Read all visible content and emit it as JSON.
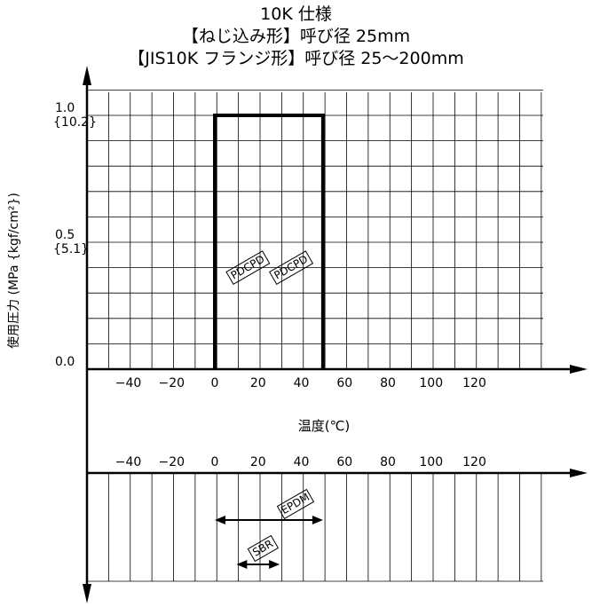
{
  "chart_data": {
    "type": "bar",
    "title_lines": [
      "10K 仕様",
      "【ねじ込み形】呼び径 25mm",
      "【JIS10K フランジ形】呼び径 25～200mm"
    ],
    "ylabel": "使用圧力 (MPa {kgf/cm²})",
    "xlabel": "温度(℃)",
    "x_ticks": [
      "−40",
      "−20",
      "0",
      "20",
      "40",
      "60",
      "80",
      "100",
      "120"
    ],
    "x_tick_values": [
      -40,
      -20,
      0,
      20,
      40,
      60,
      80,
      100,
      120
    ],
    "y_ticks": [
      {
        "value": 1.0,
        "label": "1.0",
        "sub": "{10.2}"
      },
      {
        "value": 0.5,
        "label": "0.5",
        "sub": "{5.1}"
      },
      {
        "value": 0.0,
        "label": "0.0",
        "sub": ""
      }
    ],
    "xlim": [
      -50,
      130
    ],
    "ylim": [
      0,
      1.0
    ],
    "grid": true,
    "pressure_envelope": [
      {
        "x": 0,
        "y": 0.0
      },
      {
        "x": 0,
        "y": 1.0
      },
      {
        "x": 50,
        "y": 1.0
      },
      {
        "x": 50,
        "y": 0.0
      }
    ],
    "labels": [
      {
        "text": "PDCPD",
        "x": 3,
        "y": 0.4
      },
      {
        "text": "PDCPD",
        "x": 23,
        "y": 0.4
      }
    ],
    "material_ranges": [
      {
        "name": "EPDM",
        "min": 0,
        "max": 50
      },
      {
        "name": "SBR",
        "min": 10,
        "max": 30
      }
    ]
  }
}
